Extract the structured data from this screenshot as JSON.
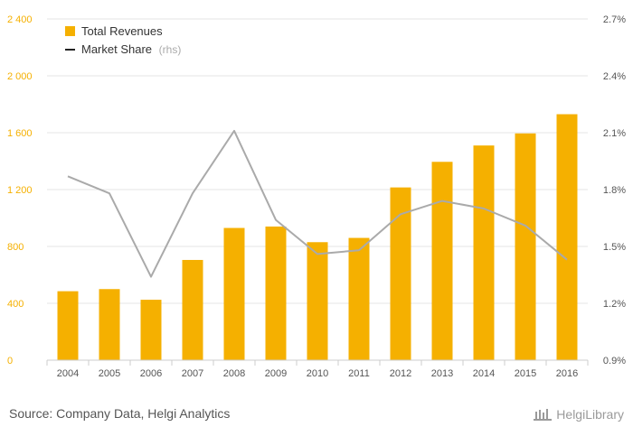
{
  "chart_data": {
    "type": "bar",
    "categories": [
      "2004",
      "2005",
      "2006",
      "2007",
      "2008",
      "2009",
      "2010",
      "2011",
      "2012",
      "2013",
      "2014",
      "2015",
      "2016"
    ],
    "series": [
      {
        "name": "Total Revenues",
        "type": "bar",
        "axis": "left",
        "color": "#f5b000",
        "values": [
          485,
          500,
          425,
          705,
          930,
          940,
          830,
          860,
          1215,
          1395,
          1510,
          1595,
          1730
        ]
      },
      {
        "name": "Market Share",
        "name_suffix": "(rhs)",
        "type": "line",
        "axis": "right",
        "color": "#aaaaaa",
        "values": [
          1.87,
          1.78,
          1.34,
          1.78,
          2.11,
          1.64,
          1.46,
          1.48,
          1.67,
          1.74,
          1.7,
          1.61,
          1.43
        ]
      }
    ],
    "left_axis": {
      "ylim": [
        0,
        2400
      ],
      "ticks": [
        0,
        400,
        800,
        1200,
        1600,
        2000,
        2400
      ],
      "tick_labels": [
        "0",
        "400",
        "800",
        "1 200",
        "1 600",
        "2 000",
        "2 400"
      ]
    },
    "right_axis": {
      "ylim": [
        0.9,
        2.7
      ],
      "ticks": [
        0.9,
        1.2,
        1.5,
        1.8,
        2.1,
        2.4,
        2.7
      ],
      "tick_labels": [
        "0.9%",
        "1.2%",
        "1.5%",
        "1.8%",
        "2.1%",
        "2.4%",
        "2.7%"
      ]
    },
    "grid": true,
    "legend": "top-left"
  },
  "legend": {
    "bar_label": "Total Revenues",
    "line_label": "Market Share",
    "line_suffix": "(rhs)"
  },
  "footer": {
    "source": "Source: Company Data, Helgi Analytics",
    "logo": "HelgiLibrary"
  }
}
